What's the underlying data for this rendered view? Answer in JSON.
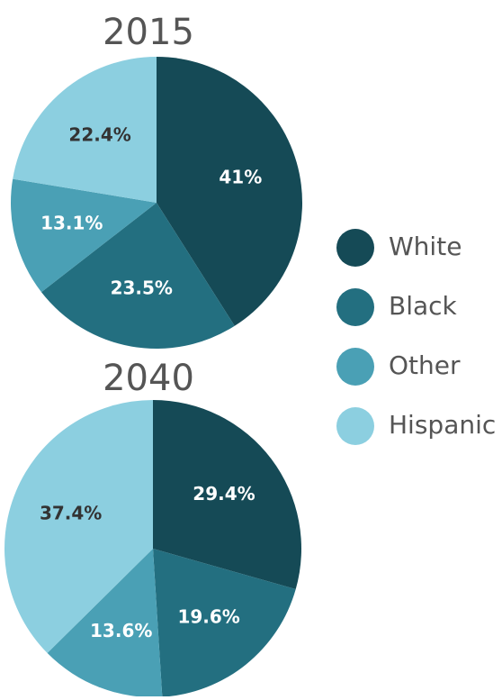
{
  "chart_data": [
    {
      "type": "pie",
      "title": "2015",
      "categories": [
        "White",
        "Black",
        "Other",
        "Hispanic"
      ],
      "values": [
        41,
        23.5,
        13.1,
        22.4
      ],
      "value_labels": [
        "41%",
        "23.5%",
        "13.1%",
        "22.4%"
      ],
      "colors": [
        "#154a56",
        "#236f80",
        "#4aa0b5",
        "#8ccfe0"
      ]
    },
    {
      "type": "pie",
      "title": "2040",
      "categories": [
        "White",
        "Black",
        "Other",
        "Hispanic"
      ],
      "values": [
        29.4,
        19.6,
        13.6,
        37.4
      ],
      "value_labels": [
        "29.4%",
        "19.6%",
        "13.6%",
        "37.4%"
      ],
      "colors": [
        "#154a56",
        "#236f80",
        "#4aa0b5",
        "#8ccfe0"
      ]
    }
  ]
}
